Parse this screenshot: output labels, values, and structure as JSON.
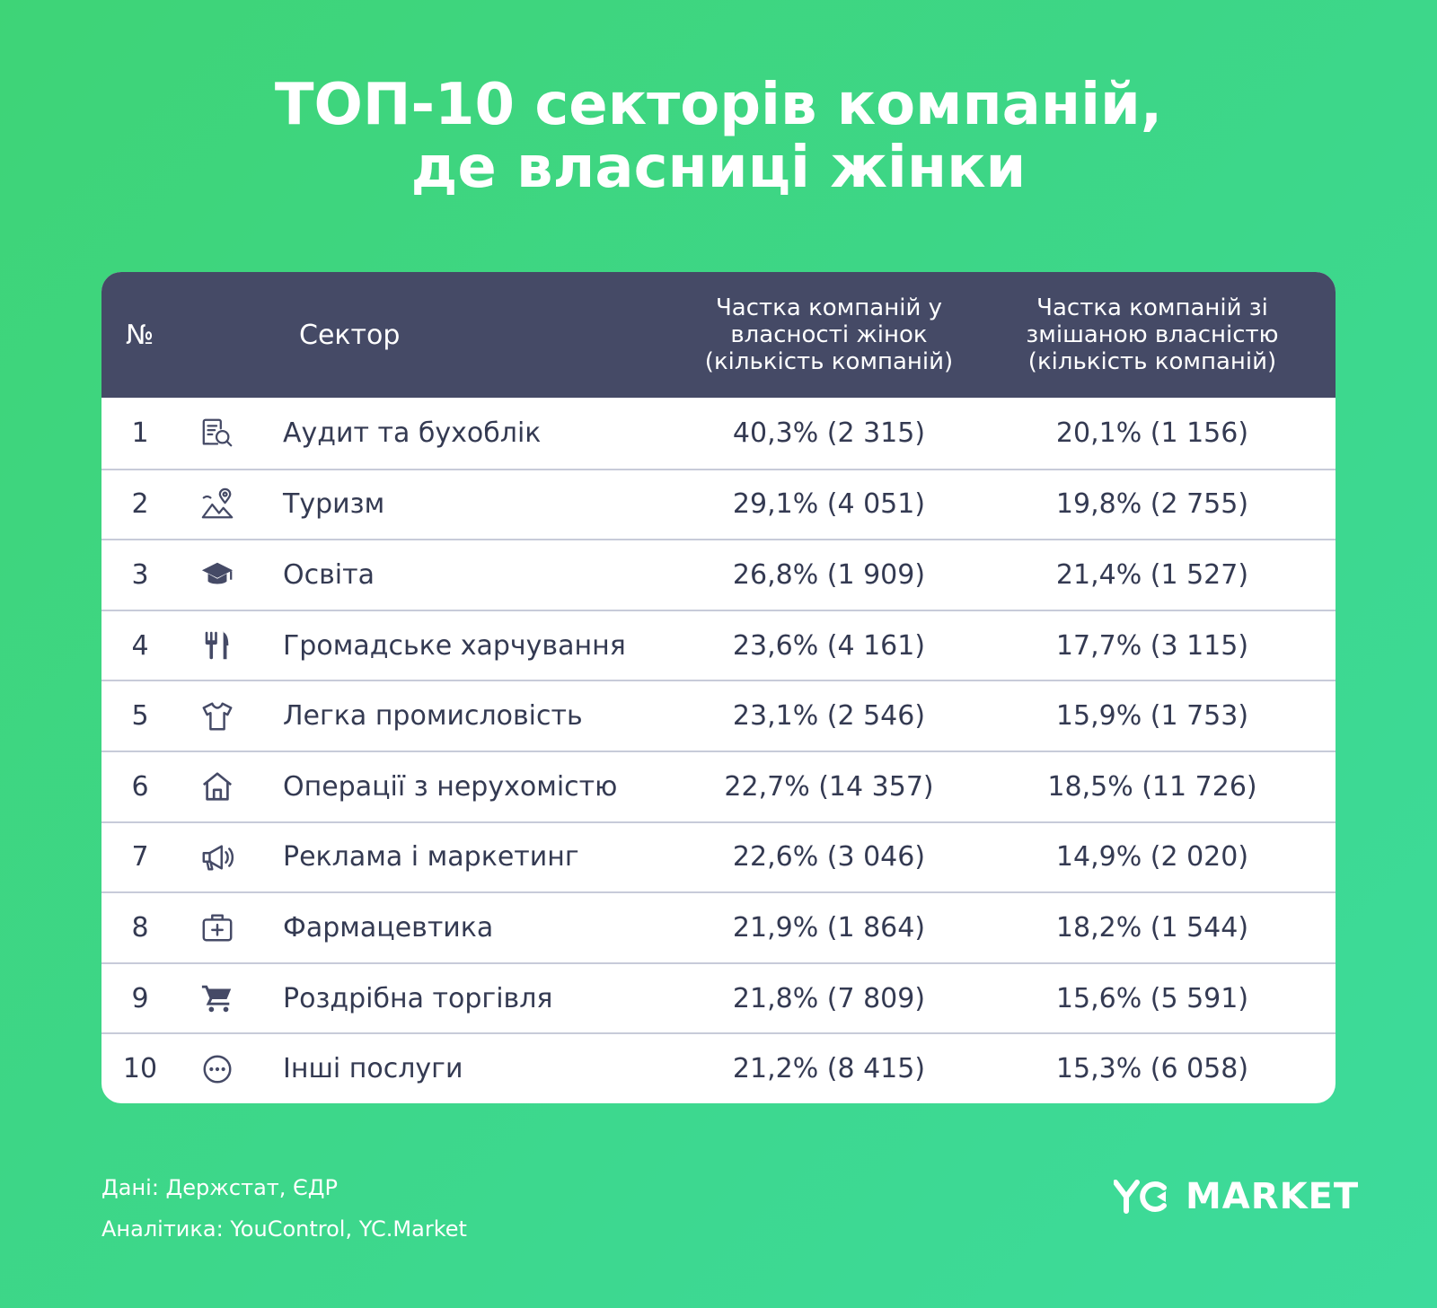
{
  "title": {
    "line1": "ТОП-10 секторів компаній,",
    "line2": "де власниці жінки"
  },
  "chart_data": {
    "type": "table",
    "columns": {
      "num": "№",
      "sector": "Сектор",
      "women_line1": "Частка компаній у",
      "women_line2": "власності жінок",
      "women_line3": "(кількість компаній)",
      "mixed_line1": "Частка компаній зі",
      "mixed_line2": "змішаною власністю",
      "mixed_line3": "(кількість компаній)"
    },
    "rows": [
      {
        "num": "1",
        "icon": "audit-icon",
        "sector": "Аудит та бухоблік",
        "women": "40,3% (2 315)",
        "mixed": "20,1% (1 156)"
      },
      {
        "num": "2",
        "icon": "tourism-icon",
        "sector": "Туризм",
        "women": "29,1% (4 051)",
        "mixed": "19,8% (2 755)"
      },
      {
        "num": "3",
        "icon": "graduation-cap-icon",
        "sector": "Освіта",
        "women": "26,8% (1 909)",
        "mixed": "21,4% (1 527)"
      },
      {
        "num": "4",
        "icon": "fork-knife-icon",
        "sector": "Громадське харчування",
        "women": "23,6% (4 161)",
        "mixed": "17,7% (3 115)"
      },
      {
        "num": "5",
        "icon": "t-shirt-icon",
        "sector": "Легка промисловість",
        "women": "23,1% (2 546)",
        "mixed": "15,9% (1 753)"
      },
      {
        "num": "6",
        "icon": "house-icon",
        "sector": "Операції з нерухомістю",
        "women": "22,7% (14 357)",
        "mixed": "18,5% (11 726)"
      },
      {
        "num": "7",
        "icon": "megaphone-icon",
        "sector": "Реклама і маркетинг",
        "women": "22,6% (3 046)",
        "mixed": "14,9% (2 020)"
      },
      {
        "num": "8",
        "icon": "medical-kit-icon",
        "sector": "Фармацевтика",
        "women": "21,9% (1 864)",
        "mixed": "18,2% (1 544)"
      },
      {
        "num": "9",
        "icon": "shopping-cart-icon",
        "sector": "Роздрібна торгівля",
        "women": "21,8% (7 809)",
        "mixed": "15,6% (5 591)"
      },
      {
        "num": "10",
        "icon": "more-dots-icon",
        "sector": "Інші послуги",
        "women": "21,2% (8 415)",
        "mixed": "15,3% (6 058)"
      }
    ]
  },
  "footer": {
    "data_source": "Дані: Держстат, ЄДР",
    "analytics": "Аналітика: YouControl, YC.Market"
  },
  "logo": {
    "text": "MARKET"
  },
  "colors": {
    "header_bg": "#454a66",
    "text_dark": "#343a52",
    "bg_green": "#3ed47f"
  }
}
